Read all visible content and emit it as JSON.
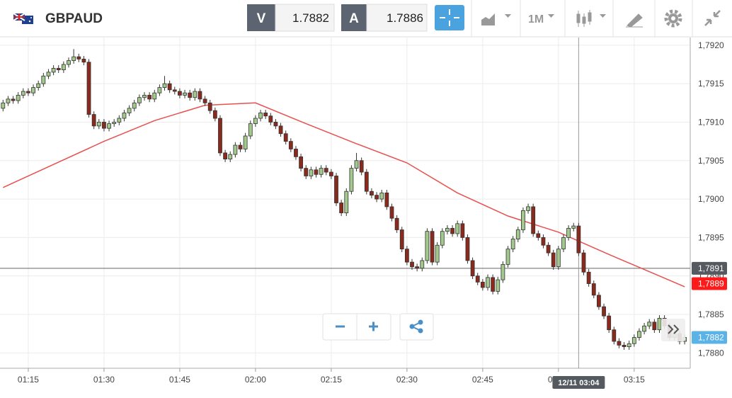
{
  "toolbar": {
    "symbol": "GBPAUD",
    "bid_label": "V",
    "bid": "1.7882",
    "ask_label": "A",
    "ask": "1.7886",
    "timeframe": "1M"
  },
  "chart_data": {
    "type": "candlestick",
    "x": [
      70,
      71,
      72,
      73,
      74,
      75,
      76,
      77,
      78,
      79,
      80,
      81,
      82,
      83,
      84,
      85,
      86,
      87,
      88,
      89,
      90,
      91,
      92,
      93,
      94,
      95,
      96,
      97,
      98,
      99,
      100,
      101,
      102,
      103,
      104,
      105,
      106,
      107,
      108,
      109,
      110,
      111,
      112,
      113,
      114,
      115,
      116,
      117,
      118,
      119,
      120,
      121,
      122,
      123,
      124,
      125,
      126,
      127,
      128,
      129,
      130,
      131,
      132,
      133,
      134,
      135,
      136,
      137,
      138,
      139,
      140,
      141,
      142,
      143,
      144,
      145,
      146,
      147,
      148,
      149,
      150,
      151,
      152,
      153,
      154,
      155,
      156,
      157,
      158,
      159,
      160,
      161,
      162,
      163,
      164,
      165,
      166,
      167,
      168,
      169,
      170,
      171,
      172,
      173,
      174,
      175,
      176,
      177,
      178,
      179,
      180,
      181,
      182,
      183,
      184,
      185,
      186,
      187,
      188,
      189,
      190,
      191,
      192,
      193,
      194,
      195,
      196,
      197,
      198,
      199,
      200,
      201,
      202,
      203,
      204,
      205
    ],
    "open": [
      1.79118,
      1.79125,
      1.7913,
      1.79128,
      1.79135,
      1.7914,
      1.79138,
      1.79145,
      1.7915,
      1.7916,
      1.79165,
      1.7917,
      1.79168,
      1.79175,
      1.7918,
      1.79185,
      1.79182,
      1.79178,
      1.7911,
      1.79095,
      1.791,
      1.79092,
      1.79098,
      1.791,
      1.79105,
      1.79112,
      1.79118,
      1.79125,
      1.79132,
      1.79135,
      1.7913,
      1.79138,
      1.79145,
      1.7915,
      1.79142,
      1.7914,
      1.79135,
      1.79138,
      1.79132,
      1.7914,
      1.7913,
      1.79125,
      1.79115,
      1.79105,
      1.7906,
      1.79052,
      1.79058,
      1.7907,
      1.79065,
      1.79082,
      1.79098,
      1.79105,
      1.79112,
      1.79108,
      1.791,
      1.79095,
      1.79085,
      1.79075,
      1.79065,
      1.79055,
      1.7904,
      1.7903,
      1.79038,
      1.79032,
      1.7904,
      1.79035,
      1.7903,
      1.78995,
      1.78982,
      1.7901,
      1.7904,
      1.7905,
      1.79035,
      1.7901,
      1.79005,
      1.79,
      1.79008,
      1.7899,
      1.78975,
      1.7896,
      1.78935,
      1.78918,
      1.78912,
      1.7891,
      1.7892,
      1.78958,
      1.78918,
      1.7894,
      1.78958,
      1.78962,
      1.78955,
      1.78968,
      1.7895,
      1.7892,
      1.789,
      1.78892,
      1.78885,
      1.78898,
      1.7888,
      1.78895,
      1.78915,
      1.78935,
      1.78948,
      1.7896,
      1.78985,
      1.7899,
      1.78955,
      1.7895,
      1.7894,
      1.7893,
      1.78912,
      1.78935,
      1.7895,
      1.78962,
      1.78965,
      1.7893,
      1.78905,
      1.7889,
      1.78875,
      1.7886,
      1.78848,
      1.7883,
      1.78815,
      1.7881,
      1.78808,
      1.78812,
      1.7882,
      1.78828,
      1.78835,
      1.7884,
      1.7883,
      1.78845,
      1.78835,
      1.7882,
      1.78825,
      1.78815
    ],
    "high": [
      1.79129,
      1.79134,
      1.79134,
      1.79139,
      1.79144,
      1.79144,
      1.79149,
      1.79154,
      1.79164,
      1.79169,
      1.79174,
      1.79174,
      1.79179,
      1.79184,
      1.79195,
      1.79189,
      1.79186,
      1.79182,
      1.79114,
      1.79104,
      1.79104,
      1.79102,
      1.79104,
      1.79109,
      1.79116,
      1.79122,
      1.79129,
      1.79136,
      1.79139,
      1.79139,
      1.79142,
      1.79149,
      1.7916,
      1.79154,
      1.79146,
      1.79144,
      1.79142,
      1.79142,
      1.79144,
      1.79144,
      1.79134,
      1.79129,
      1.79119,
      1.79109,
      1.79064,
      1.79062,
      1.79074,
      1.79074,
      1.79086,
      1.79102,
      1.79109,
      1.79116,
      1.79116,
      1.79112,
      1.79104,
      1.79099,
      1.79089,
      1.79079,
      1.79069,
      1.79059,
      1.79044,
      1.79042,
      1.79042,
      1.79044,
      1.79044,
      1.79039,
      1.79034,
      1.78999,
      1.79014,
      1.79044,
      1.7906,
      1.79054,
      1.79039,
      1.79014,
      1.79009,
      1.79012,
      1.79012,
      1.78994,
      1.78979,
      1.78964,
      1.78939,
      1.78922,
      1.78916,
      1.78924,
      1.78962,
      1.78962,
      1.78944,
      1.78962,
      1.78966,
      1.78966,
      1.78972,
      1.78972,
      1.78954,
      1.78924,
      1.78904,
      1.78896,
      1.78902,
      1.78902,
      1.78899,
      1.78919,
      1.78939,
      1.78952,
      1.78964,
      1.78989,
      1.78994,
      1.78994,
      1.78959,
      1.78954,
      1.78944,
      1.78934,
      1.78939,
      1.78954,
      1.78966,
      1.78969,
      1.78969,
      1.78934,
      1.78909,
      1.78894,
      1.78879,
      1.78864,
      1.78852,
      1.78834,
      1.78819,
      1.78814,
      1.78816,
      1.78824,
      1.78832,
      1.78839,
      1.78844,
      1.78844,
      1.78849,
      1.78849,
      1.78839,
      1.78829,
      1.78829,
      1.78824
    ],
    "low": [
      1.79114,
      1.79121,
      1.79124,
      1.79124,
      1.79131,
      1.79134,
      1.79134,
      1.79141,
      1.79146,
      1.79156,
      1.79161,
      1.79164,
      1.79164,
      1.79171,
      1.79176,
      1.79178,
      1.79174,
      1.79106,
      1.79091,
      1.79091,
      1.79088,
      1.79088,
      1.79094,
      1.79096,
      1.79101,
      1.79108,
      1.79114,
      1.79121,
      1.79128,
      1.79126,
      1.79126,
      1.79134,
      1.79141,
      1.79138,
      1.79136,
      1.79131,
      1.79131,
      1.79128,
      1.79128,
      1.79126,
      1.79121,
      1.79111,
      1.79101,
      1.79056,
      1.79048,
      1.79048,
      1.79054,
      1.79061,
      1.79061,
      1.79078,
      1.79094,
      1.79101,
      1.79104,
      1.79096,
      1.79091,
      1.79081,
      1.79071,
      1.79061,
      1.79051,
      1.79036,
      1.79026,
      1.79026,
      1.79028,
      1.79028,
      1.79031,
      1.79026,
      1.78991,
      1.78978,
      1.78978,
      1.79006,
      1.79036,
      1.79031,
      1.79006,
      1.79001,
      1.78996,
      1.78996,
      1.78986,
      1.78971,
      1.78956,
      1.78931,
      1.78914,
      1.78908,
      1.78906,
      1.78906,
      1.78916,
      1.78914,
      1.78914,
      1.78936,
      1.78954,
      1.78951,
      1.78951,
      1.78946,
      1.78916,
      1.78896,
      1.78888,
      1.78881,
      1.78881,
      1.78876,
      1.78876,
      1.78891,
      1.78911,
      1.78931,
      1.78944,
      1.78956,
      1.78981,
      1.78951,
      1.78946,
      1.78936,
      1.78926,
      1.78908,
      1.78908,
      1.78931,
      1.78946,
      1.78958,
      1.78926,
      1.78901,
      1.78886,
      1.78871,
      1.78856,
      1.78844,
      1.78826,
      1.78811,
      1.78806,
      1.78804,
      1.78804,
      1.78808,
      1.78816,
      1.78824,
      1.78831,
      1.78826,
      1.78826,
      1.78831,
      1.78816,
      1.78816,
      1.78811,
      1.78811
    ],
    "close": [
      1.79125,
      1.7913,
      1.79128,
      1.79135,
      1.7914,
      1.79138,
      1.79145,
      1.7915,
      1.7916,
      1.79165,
      1.7917,
      1.79168,
      1.79175,
      1.7918,
      1.79185,
      1.79182,
      1.79178,
      1.7911,
      1.79095,
      1.791,
      1.79092,
      1.79098,
      1.791,
      1.79105,
      1.79112,
      1.79118,
      1.79125,
      1.79132,
      1.79135,
      1.7913,
      1.79138,
      1.79145,
      1.7915,
      1.79142,
      1.7914,
      1.79135,
      1.79138,
      1.79132,
      1.7914,
      1.7913,
      1.79125,
      1.79115,
      1.79105,
      1.7906,
      1.79052,
      1.79058,
      1.7907,
      1.79065,
      1.79082,
      1.79098,
      1.79105,
      1.79112,
      1.79108,
      1.791,
      1.79095,
      1.79085,
      1.79075,
      1.79065,
      1.79055,
      1.7904,
      1.7903,
      1.79038,
      1.79032,
      1.7904,
      1.79035,
      1.7903,
      1.78995,
      1.78982,
      1.7901,
      1.7904,
      1.7905,
      1.79035,
      1.7901,
      1.79005,
      1.79,
      1.79008,
      1.7899,
      1.78975,
      1.7896,
      1.78935,
      1.78918,
      1.78912,
      1.7891,
      1.7892,
      1.78958,
      1.78918,
      1.7894,
      1.78958,
      1.78962,
      1.78955,
      1.78968,
      1.7895,
      1.7892,
      1.789,
      1.78892,
      1.78885,
      1.78898,
      1.7888,
      1.78895,
      1.78915,
      1.78935,
      1.78948,
      1.7896,
      1.78985,
      1.7899,
      1.78955,
      1.7895,
      1.7894,
      1.7893,
      1.78912,
      1.78935,
      1.7895,
      1.78962,
      1.78965,
      1.7893,
      1.78905,
      1.7889,
      1.78875,
      1.7886,
      1.78848,
      1.7883,
      1.78815,
      1.7881,
      1.78808,
      1.78812,
      1.7882,
      1.78828,
      1.78835,
      1.7884,
      1.7883,
      1.78845,
      1.78835,
      1.7882,
      1.78825,
      1.78815,
      1.7882
    ],
    "up_color": "#a3c98c",
    "down_color": "#8b2a1c",
    "ma": {
      "x": [
        70,
        80,
        90,
        100,
        110,
        120,
        130,
        140,
        150,
        160,
        170,
        180,
        190,
        200,
        205
      ],
      "values": [
        1.79015,
        1.79045,
        1.79075,
        1.79102,
        1.79122,
        1.79125,
        1.79098,
        1.79072,
        1.79047,
        1.79008,
        1.78978,
        1.78957,
        1.78928,
        1.789,
        1.78886
      ],
      "color": "#e8504f"
    },
    "xlim": [
      69.4,
      206.1
    ],
    "xticks": [
      {
        "value": 75,
        "label": "01:15"
      },
      {
        "value": 90,
        "label": "01:30"
      },
      {
        "value": 105,
        "label": "01:45"
      },
      {
        "value": 120,
        "label": "02:00"
      },
      {
        "value": 135,
        "label": "02:15"
      },
      {
        "value": 150,
        "label": "02:30"
      },
      {
        "value": 165,
        "label": "02:45"
      },
      {
        "value": 180,
        "label": "03:00"
      },
      {
        "value": 195,
        "label": "03:15"
      }
    ],
    "ylim": [
      1.7878,
      1.7921
    ],
    "yticks": [
      {
        "value": 1.788,
        "label": "1,7880"
      },
      {
        "value": 1.7885,
        "label": "1,7885"
      },
      {
        "value": 1.789,
        "label": "1,7890"
      },
      {
        "value": 1.7895,
        "label": "1,7895"
      },
      {
        "value": 1.79,
        "label": "1,7900"
      },
      {
        "value": 1.7905,
        "label": "1,7905"
      },
      {
        "value": 1.791,
        "label": "1,7910"
      },
      {
        "value": 1.7915,
        "label": "1,7915"
      },
      {
        "value": 1.792,
        "label": "1,7920"
      }
    ],
    "grid": true,
    "markers": [
      {
        "value": 1.7891,
        "label": "1,7891",
        "color": "#555a60"
      },
      {
        "value": 1.7889,
        "label": "1,7889",
        "color": "#ff1a1a"
      },
      {
        "value": 1.7882,
        "label": "1,7882",
        "color": "#5ab2e6"
      }
    ],
    "crosshair": {
      "x": 184,
      "label": "12/11 03:04",
      "y": 1.7891
    }
  }
}
